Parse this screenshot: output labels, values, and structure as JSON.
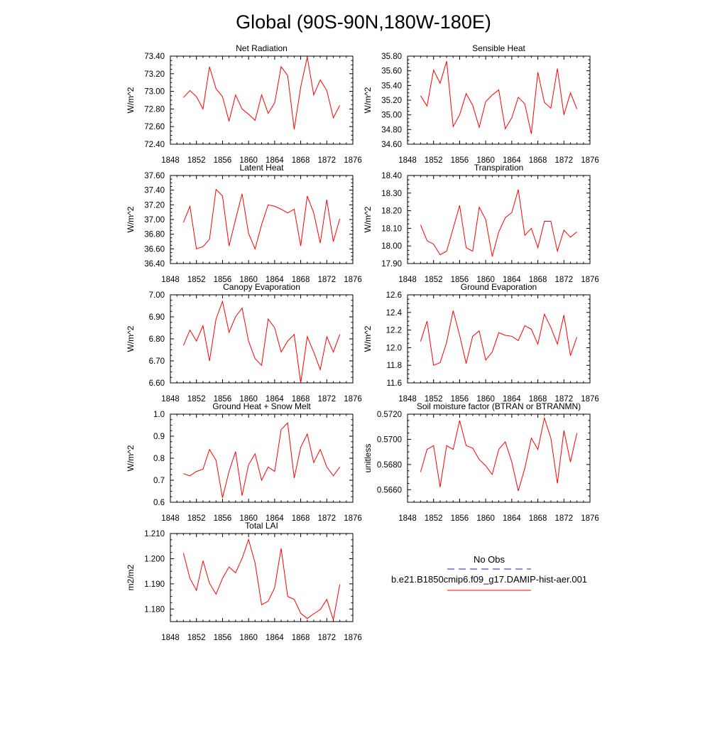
{
  "title": "Global (90S-90N,180W-180E)",
  "line_color": "#ff0000",
  "obs_color": "#2222aa",
  "legend": {
    "obs_label": "No Obs",
    "model_label": "b.e21.B1850cmip6.f09_g17.DAMIP-hist-aer.001"
  },
  "chart_data": [
    {
      "type": "line",
      "title": "Net Radiation",
      "ylabel": "W/m^2",
      "xlim": [
        1848,
        1876
      ],
      "ylim": [
        72.4,
        73.4
      ],
      "xticks": [
        "1848",
        "1852",
        "1856",
        "1860",
        "1864",
        "1868",
        "1872",
        "1876"
      ],
      "yticks": [
        "72.40",
        "72.60",
        "72.80",
        "73.00",
        "73.20",
        "73.40"
      ],
      "x": [
        1850,
        1851,
        1852,
        1853,
        1854,
        1855,
        1856,
        1857,
        1858,
        1859,
        1860,
        1861,
        1862,
        1863,
        1864,
        1865,
        1866,
        1867,
        1868,
        1869,
        1870,
        1871,
        1872,
        1873,
        1874
      ],
      "values": [
        72.93,
        73.01,
        72.94,
        72.8,
        73.28,
        73.03,
        72.94,
        72.66,
        72.96,
        72.8,
        72.74,
        72.67,
        72.96,
        72.75,
        72.87,
        73.28,
        73.18,
        72.57,
        73.05,
        73.39,
        72.96,
        73.13,
        73.01,
        72.7,
        72.84
      ]
    },
    {
      "type": "line",
      "title": "Sensible Heat",
      "ylabel": "W/m^2",
      "xlim": [
        1848,
        1876
      ],
      "ylim": [
        34.6,
        35.8
      ],
      "xticks": [
        "1848",
        "1852",
        "1856",
        "1860",
        "1864",
        "1868",
        "1872",
        "1876"
      ],
      "yticks": [
        "34.60",
        "34.80",
        "35.00",
        "35.20",
        "35.40",
        "35.60",
        "35.80"
      ],
      "x": [
        1850,
        1851,
        1852,
        1853,
        1854,
        1855,
        1856,
        1857,
        1858,
        1859,
        1860,
        1861,
        1862,
        1863,
        1864,
        1865,
        1866,
        1867,
        1868,
        1869,
        1870,
        1871,
        1872,
        1873,
        1874
      ],
      "values": [
        35.26,
        35.12,
        35.61,
        35.43,
        35.73,
        34.84,
        35.0,
        35.29,
        35.13,
        34.83,
        35.18,
        35.27,
        35.34,
        34.81,
        34.96,
        35.24,
        35.15,
        34.74,
        35.58,
        35.17,
        35.09,
        35.63,
        35.0,
        35.3,
        35.08
      ]
    },
    {
      "type": "line",
      "title": "Latent Heat",
      "ylabel": "W/m^2",
      "xlim": [
        1848,
        1876
      ],
      "ylim": [
        36.4,
        37.6
      ],
      "xticks": [
        "1848",
        "1852",
        "1856",
        "1860",
        "1864",
        "1868",
        "1872",
        "1876"
      ],
      "yticks": [
        "36.40",
        "36.60",
        "36.80",
        "37.00",
        "37.20",
        "37.40",
        "37.60"
      ],
      "x": [
        1850,
        1851,
        1852,
        1853,
        1854,
        1855,
        1856,
        1857,
        1858,
        1859,
        1860,
        1861,
        1862,
        1863,
        1864,
        1865,
        1866,
        1867,
        1868,
        1869,
        1870,
        1871,
        1872,
        1873,
        1874
      ],
      "values": [
        36.96,
        37.18,
        36.6,
        36.63,
        36.73,
        37.41,
        37.32,
        36.64,
        37.0,
        37.35,
        36.81,
        36.6,
        36.93,
        37.2,
        37.18,
        37.14,
        37.09,
        37.14,
        36.64,
        37.32,
        37.09,
        36.68,
        37.27,
        36.7,
        37.01
      ]
    },
    {
      "type": "line",
      "title": "Transpiration",
      "ylabel": "W/m^2",
      "xlim": [
        1848,
        1876
      ],
      "ylim": [
        17.9,
        18.4
      ],
      "xticks": [
        "1848",
        "1852",
        "1856",
        "1860",
        "1864",
        "1868",
        "1872",
        "1876"
      ],
      "yticks": [
        "17.90",
        "18.00",
        "18.10",
        "18.20",
        "18.30",
        "18.40"
      ],
      "x": [
        1850,
        1851,
        1852,
        1853,
        1854,
        1855,
        1856,
        1857,
        1858,
        1859,
        1860,
        1861,
        1862,
        1863,
        1864,
        1865,
        1866,
        1867,
        1868,
        1869,
        1870,
        1871,
        1872,
        1873,
        1874
      ],
      "values": [
        18.12,
        18.03,
        18.01,
        17.95,
        17.97,
        18.1,
        18.23,
        17.99,
        17.97,
        18.22,
        18.15,
        17.94,
        18.08,
        18.16,
        18.19,
        18.32,
        18.06,
        18.1,
        17.99,
        18.14,
        18.14,
        17.97,
        18.09,
        18.05,
        18.08
      ]
    },
    {
      "type": "line",
      "title": "Canopy Evaporation",
      "ylabel": "W/m^2",
      "xlim": [
        1848,
        1876
      ],
      "ylim": [
        6.6,
        7.0
      ],
      "xticks": [
        "1848",
        "1852",
        "1856",
        "1860",
        "1864",
        "1868",
        "1872",
        "1876"
      ],
      "yticks": [
        "6.60",
        "6.70",
        "6.80",
        "6.90",
        "7.00"
      ],
      "x": [
        1850,
        1851,
        1852,
        1853,
        1854,
        1855,
        1856,
        1857,
        1858,
        1859,
        1860,
        1861,
        1862,
        1863,
        1864,
        1865,
        1866,
        1867,
        1868,
        1869,
        1870,
        1871,
        1872,
        1873,
        1874
      ],
      "values": [
        6.77,
        6.84,
        6.79,
        6.86,
        6.7,
        6.89,
        6.97,
        6.83,
        6.9,
        6.94,
        6.79,
        6.71,
        6.68,
        6.89,
        6.85,
        6.74,
        6.79,
        6.82,
        6.6,
        6.81,
        6.74,
        6.66,
        6.81,
        6.74,
        6.82
      ]
    },
    {
      "type": "line",
      "title": "Ground Evaporation",
      "ylabel": "W/m^2",
      "xlim": [
        1848,
        1876
      ],
      "ylim": [
        11.6,
        12.6
      ],
      "xticks": [
        "1848",
        "1852",
        "1856",
        "1860",
        "1864",
        "1868",
        "1872",
        "1876"
      ],
      "yticks": [
        "11.6",
        "11.8",
        "12.0",
        "12.2",
        "12.4",
        "12.6"
      ],
      "x": [
        1850,
        1851,
        1852,
        1853,
        1854,
        1855,
        1856,
        1857,
        1858,
        1859,
        1860,
        1861,
        1862,
        1863,
        1864,
        1865,
        1866,
        1867,
        1868,
        1869,
        1870,
        1871,
        1872,
        1873,
        1874
      ],
      "values": [
        12.07,
        12.3,
        11.8,
        11.83,
        12.06,
        12.42,
        12.14,
        11.82,
        12.13,
        12.19,
        11.86,
        11.95,
        12.17,
        12.14,
        12.13,
        12.08,
        12.25,
        12.21,
        12.04,
        12.38,
        12.23,
        12.04,
        12.37,
        11.91,
        12.12
      ]
    },
    {
      "type": "line",
      "title": "Ground Heat + Snow Melt",
      "ylabel": "W/m^2",
      "xlim": [
        1848,
        1876
      ],
      "ylim": [
        0.6,
        1.0
      ],
      "xticks": [
        "1848",
        "1852",
        "1856",
        "1860",
        "1864",
        "1868",
        "1872",
        "1876"
      ],
      "yticks": [
        "0.6",
        "0.7",
        "0.8",
        "0.9",
        "1.0"
      ],
      "x": [
        1850,
        1851,
        1852,
        1853,
        1854,
        1855,
        1856,
        1857,
        1858,
        1859,
        1860,
        1861,
        1862,
        1863,
        1864,
        1865,
        1866,
        1867,
        1868,
        1869,
        1870,
        1871,
        1872,
        1873,
        1874
      ],
      "values": [
        0.73,
        0.72,
        0.74,
        0.75,
        0.84,
        0.79,
        0.62,
        0.74,
        0.83,
        0.63,
        0.77,
        0.82,
        0.7,
        0.76,
        0.74,
        0.93,
        0.96,
        0.71,
        0.85,
        0.91,
        0.78,
        0.84,
        0.76,
        0.72,
        0.76
      ]
    },
    {
      "type": "line",
      "title": "Soil moisture factor (BTRAN or BTRANMN)",
      "ylabel": "unitless",
      "xlim": [
        1848,
        1876
      ],
      "ylim": [
        0.565,
        0.572
      ],
      "xticks": [
        "1848",
        "1852",
        "1856",
        "1860",
        "1864",
        "1868",
        "1872",
        "1876"
      ],
      "yticks": [
        "0.5660",
        "0.5680",
        "0.5700",
        "0.5720"
      ],
      "x": [
        1850,
        1851,
        1852,
        1853,
        1854,
        1855,
        1856,
        1857,
        1858,
        1859,
        1860,
        1861,
        1862,
        1863,
        1864,
        1865,
        1866,
        1867,
        1868,
        1869,
        1870,
        1871,
        1872,
        1873,
        1874
      ],
      "values": [
        0.5674,
        0.5692,
        0.5695,
        0.5662,
        0.5695,
        0.5692,
        0.5715,
        0.5695,
        0.5693,
        0.5684,
        0.5679,
        0.5672,
        0.5692,
        0.5698,
        0.5682,
        0.5659,
        0.5677,
        0.5701,
        0.5692,
        0.5717,
        0.5701,
        0.5665,
        0.5707,
        0.5682,
        0.5705
      ]
    },
    {
      "type": "line",
      "title": "Total LAI",
      "ylabel": "m2/m2",
      "xlim": [
        1848,
        1876
      ],
      "ylim": [
        1.175,
        1.21
      ],
      "xticks": [
        "1848",
        "1852",
        "1856",
        "1860",
        "1864",
        "1868",
        "1872",
        "1876"
      ],
      "yticks": [
        "1.180",
        "1.190",
        "1.200",
        "1.210"
      ],
      "x": [
        1850,
        1851,
        1852,
        1853,
        1854,
        1855,
        1856,
        1857,
        1858,
        1859,
        1860,
        1861,
        1862,
        1863,
        1864,
        1865,
        1866,
        1867,
        1868,
        1869,
        1870,
        1871,
        1872,
        1873,
        1874
      ],
      "values": [
        1.2022,
        1.1922,
        1.1874,
        1.1992,
        1.1902,
        1.1859,
        1.1922,
        1.1967,
        1.1944,
        1.2001,
        1.2076,
        1.1983,
        1.1817,
        1.1831,
        1.1885,
        1.2041,
        1.185,
        1.1838,
        1.1783,
        1.1762,
        1.1781,
        1.1798,
        1.1838,
        1.1757,
        1.1897
      ]
    }
  ]
}
